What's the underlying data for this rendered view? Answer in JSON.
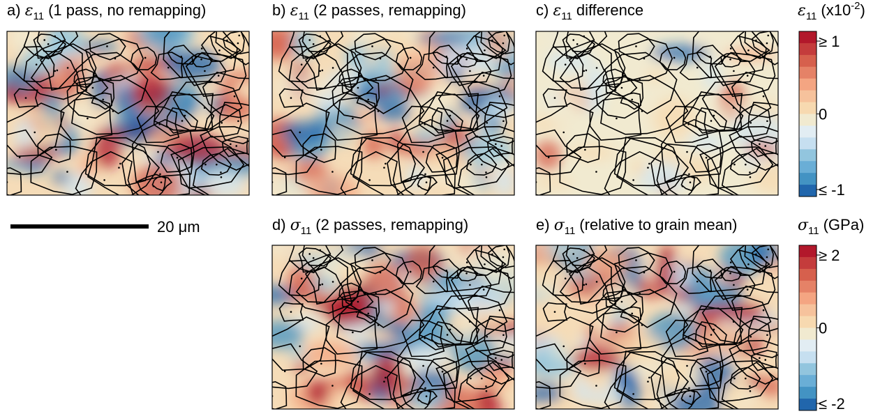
{
  "panels": [
    {
      "label": "a)",
      "symbol": "ε",
      "subscript": "11",
      "text": "(1 pass, no remapping)"
    },
    {
      "label": "b)",
      "symbol": "ε",
      "subscript": "11",
      "text": "(2 passes, remapping)"
    },
    {
      "label": "c)",
      "symbol": "ε",
      "subscript": "11",
      "text": "difference"
    },
    {
      "label": "d)",
      "symbol": "σ",
      "subscript": "11",
      "text": "(2 passes, remapping)"
    },
    {
      "label": "e)",
      "symbol": "σ",
      "subscript": "11",
      "text": "(relative to grain mean)"
    }
  ],
  "colorbars": [
    {
      "symbol": "ε",
      "subscript": "11",
      "text": "(x10",
      "superscript": "-2",
      "close": ")",
      "ticks": [
        "≥ 1",
        "0",
        "≤ -1"
      ]
    },
    {
      "symbol": "σ",
      "subscript": "11",
      "text": "(GPa)",
      "ticks": [
        "≥ 2",
        "0",
        "≤ -2"
      ]
    }
  ],
  "scale_bar": {
    "label": "20 μm"
  }
}
